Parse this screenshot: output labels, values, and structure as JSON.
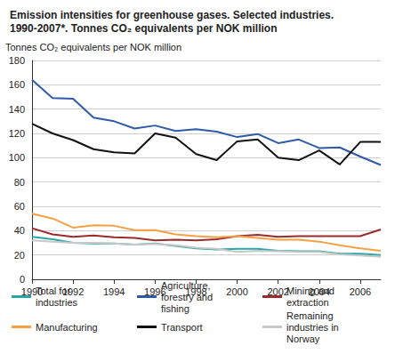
{
  "chart_data": {
    "type": "line",
    "title": "Emission intensities for greenhouse gases. Selected industries. 1990-2007*. Tonnes CO₂ equivalents per NOK million",
    "y_label": "Tonnes CO₂ equivalents per NOK million",
    "x": [
      1990,
      1991,
      1992,
      1993,
      1994,
      1995,
      1996,
      1997,
      1998,
      1999,
      2000,
      2001,
      2002,
      2003,
      2004,
      2005,
      2006,
      2007
    ],
    "xlim": [
      1990,
      2007
    ],
    "xticks": [
      1990,
      1992,
      1994,
      1996,
      1998,
      2000,
      2002,
      2004,
      2006
    ],
    "ylim": [
      0,
      180
    ],
    "yticks": [
      0,
      20,
      40,
      60,
      80,
      100,
      120,
      140,
      160,
      180
    ],
    "grid": true,
    "legend": "bottom",
    "series": [
      {
        "name": "Total for industries",
        "color": "#2aa5a5",
        "values": [
          35,
          33,
          30,
          29.5,
          29.5,
          28.5,
          29.5,
          27.5,
          25.5,
          24.5,
          25,
          25,
          23.5,
          23,
          23,
          21,
          21,
          20
        ]
      },
      {
        "name": "Agriculture, forestry and fishing",
        "color": "#2f5aa8",
        "values": [
          164,
          149,
          148.5,
          133,
          130,
          124,
          126.5,
          122,
          123.5,
          121.5,
          117,
          119.5,
          112,
          115,
          108,
          108.5,
          101,
          94
        ]
      },
      {
        "name": "Mining and extraction",
        "color": "#9b2b2b",
        "values": [
          42,
          37,
          35,
          36,
          34.5,
          34,
          32,
          32.5,
          32,
          33,
          35.5,
          36.5,
          35,
          35.5,
          35.5,
          35.5,
          35.5,
          41
        ]
      },
      {
        "name": "Manufacturing",
        "color": "#f5a044",
        "values": [
          54,
          50,
          42.5,
          44.5,
          44,
          40.5,
          40.5,
          37,
          35.5,
          34.5,
          35.5,
          34,
          32.5,
          32.5,
          31,
          28,
          25.5,
          23.5
        ]
      },
      {
        "name": "Transport",
        "color": "#111111",
        "values": [
          128,
          120,
          114.5,
          107,
          104.5,
          103.5,
          120,
          116.5,
          103,
          98,
          113.5,
          115,
          100,
          98,
          106,
          94.5,
          113,
          113
        ]
      },
      {
        "name": "Remaining industries in Norway",
        "color": "#c8c8c8",
        "values": [
          32,
          31,
          30,
          30,
          29.5,
          28.5,
          29,
          28,
          26,
          25,
          22.5,
          23.5,
          23,
          22.5,
          22.5,
          20.5,
          19.5,
          18.5
        ]
      }
    ]
  }
}
